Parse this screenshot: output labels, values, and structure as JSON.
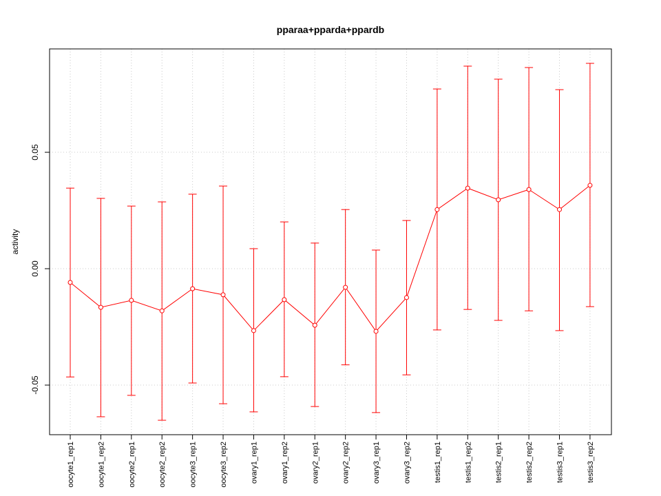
{
  "chart_data": {
    "type": "line",
    "title": "pparaa+pparda+ppardb",
    "xlabel": "",
    "ylabel": "activity",
    "categories": [
      "oocyte1_rep1",
      "oocyte1_rep2",
      "oocyte2_rep1",
      "oocyte2_rep2",
      "oocyte3_rep1",
      "oocyte3_rep2",
      "ovary1_rep1",
      "ovary1_rep2",
      "ovary2_rep1",
      "ovary2_rep2",
      "ovary3_rep1",
      "ovary3_rep2",
      "testis1_rep1",
      "testis1_rep2",
      "testis2_rep1",
      "testis2_rep2",
      "testis3_rep1",
      "testis3_rep2"
    ],
    "series": [
      {
        "name": "activity",
        "color": "#ff0000",
        "values": [
          -0.0059,
          -0.0166,
          -0.0136,
          -0.0181,
          -0.0086,
          -0.0112,
          -0.0266,
          -0.0133,
          -0.0243,
          -0.008,
          -0.0269,
          -0.0124,
          0.0254,
          0.0346,
          0.0296,
          0.034,
          0.0254,
          0.0358
        ],
        "upper": [
          0.0346,
          0.0302,
          0.0269,
          0.0287,
          0.032,
          0.0355,
          0.0086,
          0.0201,
          0.011,
          0.0254,
          0.008,
          0.0207,
          0.0772,
          0.087,
          0.0814,
          0.0864,
          0.0769,
          0.0882
        ],
        "lower": [
          -0.0465,
          -0.0636,
          -0.0544,
          -0.0651,
          -0.0491,
          -0.058,
          -0.0615,
          -0.0464,
          -0.0592,
          -0.0413,
          -0.0618,
          -0.0456,
          -0.0263,
          -0.0175,
          -0.0222,
          -0.0181,
          -0.0266,
          -0.0163
        ]
      }
    ],
    "yticks": [
      -0.05,
      0.0,
      0.05
    ],
    "ytick_labels": [
      "-0.05",
      "0.00",
      "0.05"
    ],
    "ylim": [
      -0.0713,
      0.0944
    ],
    "xlim": [
      0.324,
      18.7
    ],
    "grid": true,
    "legend": "none"
  }
}
